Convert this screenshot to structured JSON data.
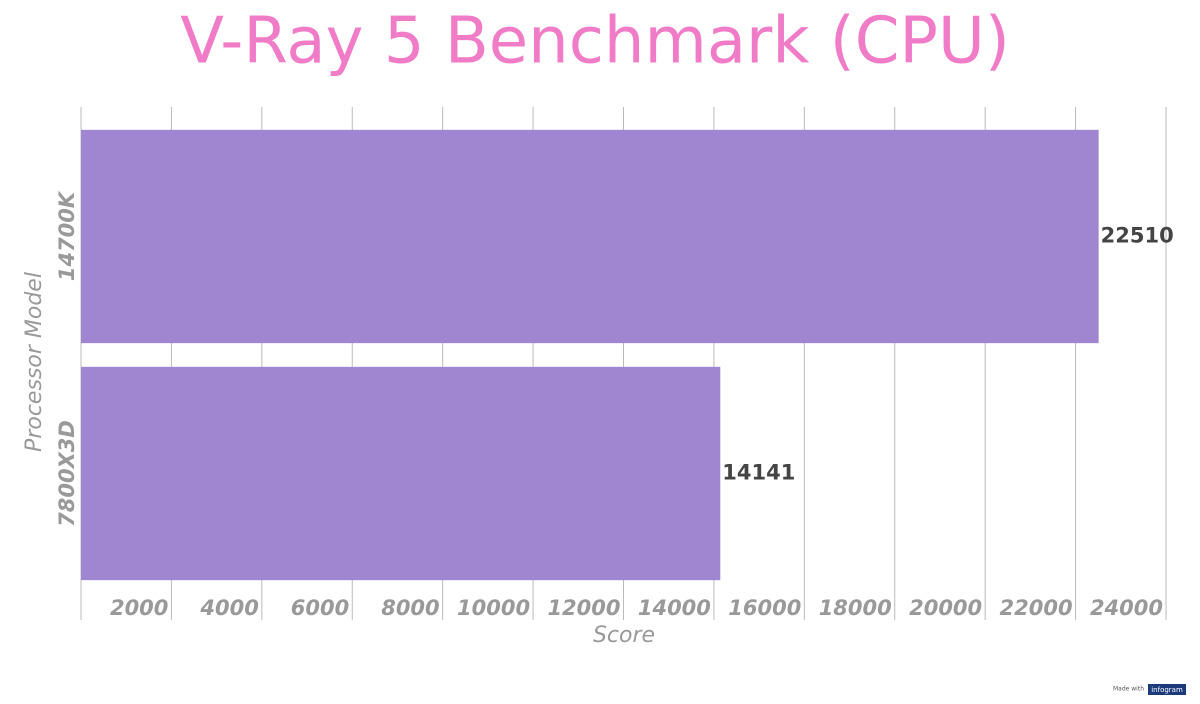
{
  "chart_data": {
    "type": "bar",
    "orientation": "horizontal",
    "title": "V-Ray 5 Benchmark (CPU)",
    "x_label": "Score",
    "y_label": "Processor Model",
    "categories": [
      "14700K",
      "7800X3D"
    ],
    "values": [
      22510,
      14141
    ],
    "color": "#a085d0",
    "xlim": [
      0,
      24000
    ],
    "xticks": [
      2000,
      4000,
      6000,
      8000,
      10000,
      12000,
      14000,
      16000,
      18000,
      20000,
      22000,
      24000
    ],
    "grid": true
  },
  "footer": {
    "made_with": "Made with",
    "brand": "infogram"
  }
}
